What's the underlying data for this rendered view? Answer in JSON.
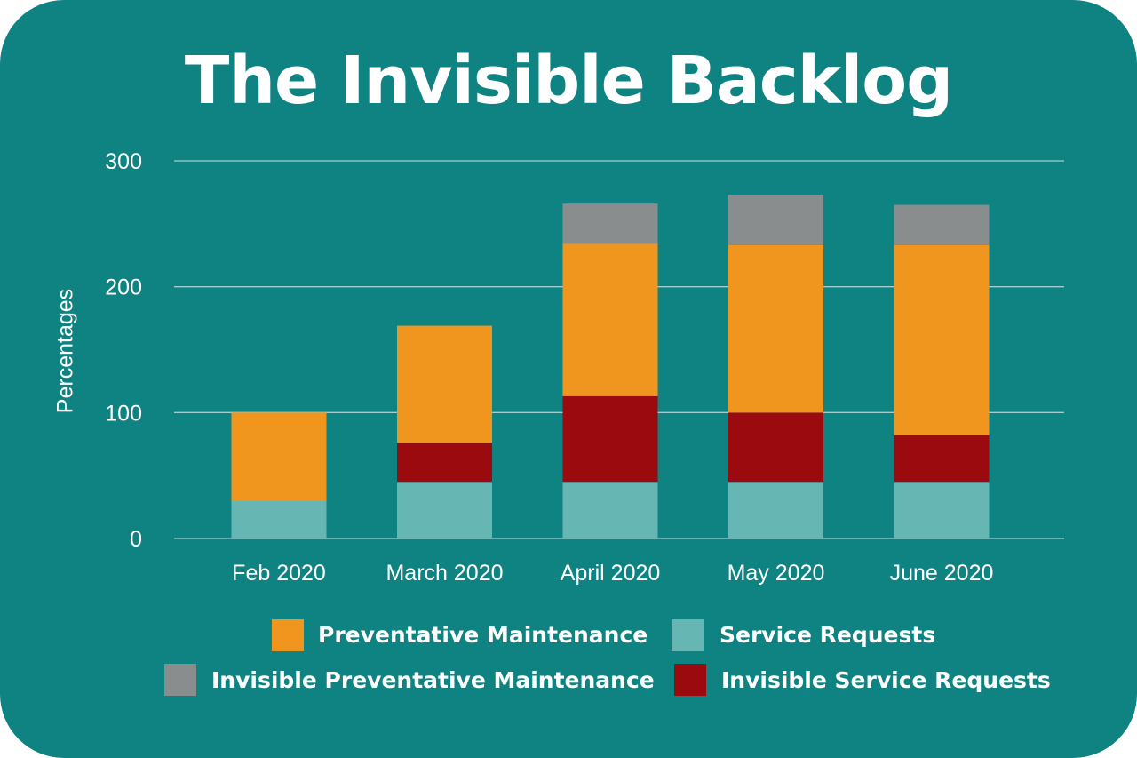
{
  "chart_data": {
    "type": "bar",
    "stacked": true,
    "title": "The Invisible Backlog",
    "xlabel": "",
    "ylabel": "Percentages",
    "ylim": [
      0,
      300
    ],
    "yticks": [
      0,
      100,
      200,
      300
    ],
    "grid": true,
    "categories": [
      "Feb 2020",
      "March 2020",
      "April 2020",
      "May 2020",
      "June 2020"
    ],
    "series": [
      {
        "name": "Service Requests",
        "color": "#66b6b4",
        "values": [
          30,
          45,
          45,
          45,
          45
        ]
      },
      {
        "name": "Invisible Service Requests",
        "color": "#9a0a0f",
        "values": [
          0,
          31,
          68,
          55,
          37
        ]
      },
      {
        "name": "Preventative Maintenance",
        "color": "#f0961f",
        "values": [
          70,
          93,
          121,
          133,
          151
        ]
      },
      {
        "name": "Invisible Preventative Maintenance",
        "color": "#8a8d8d",
        "values": [
          0,
          0,
          32,
          40,
          32
        ]
      }
    ],
    "legend": {
      "placement": "bottom",
      "order": [
        "Preventative Maintenance",
        "Service Requests",
        "Invisible Preventative Maintenance",
        "Invisible Service Requests"
      ]
    }
  }
}
